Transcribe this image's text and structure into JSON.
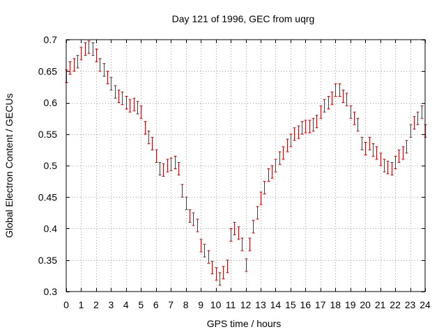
{
  "chart_data": {
    "type": "scatter",
    "title": "Day 121 of 1996, GEC from uqrg",
    "xlabel": "GPS time / hours",
    "ylabel": "Global Electron Content / GECUs",
    "xlim": [
      0,
      24
    ],
    "ylim": [
      0.3,
      0.7
    ],
    "xticks": [
      0,
      1,
      2,
      3,
      4,
      5,
      6,
      7,
      8,
      9,
      10,
      11,
      12,
      13,
      14,
      15,
      16,
      17,
      18,
      19,
      20,
      21,
      22,
      23,
      24
    ],
    "xtick_labels": [
      "0",
      "1",
      "2",
      "3",
      "4",
      "5",
      "6",
      "7",
      "8",
      "9",
      "10",
      "11",
      "12",
      "13",
      "14",
      "15",
      "16",
      "17",
      "18",
      "19",
      "20",
      "21",
      "22",
      "23",
      "24"
    ],
    "yticks": [
      0.3,
      0.35,
      0.4,
      0.45,
      0.5,
      0.55,
      0.6,
      0.65,
      0.7
    ],
    "ytick_labels": [
      "0.3",
      "0.35",
      "0.4",
      "0.45",
      "0.5",
      "0.55",
      "0.6",
      "0.65",
      "0.7"
    ],
    "grid": true,
    "marker": "errorbar",
    "color": "#cc0000",
    "error": 0.01,
    "x": [
      0,
      0.25,
      0.5,
      0.75,
      1,
      1.25,
      1.5,
      1.75,
      2,
      2.25,
      2.5,
      2.75,
      3,
      3.25,
      3.5,
      3.75,
      4,
      4.25,
      4.5,
      4.75,
      5,
      5.25,
      5.5,
      5.75,
      6,
      6.25,
      6.5,
      6.75,
      7,
      7.25,
      7.5,
      7.75,
      8,
      8.25,
      8.5,
      8.75,
      9,
      9.25,
      9.5,
      9.75,
      10,
      10.25,
      10.5,
      10.75,
      11,
      11.25,
      11.5,
      11.75,
      12,
      12.25,
      12.5,
      12.75,
      13,
      13.25,
      13.5,
      13.75,
      14,
      14.25,
      14.5,
      14.75,
      15,
      15.25,
      15.5,
      15.75,
      16,
      16.25,
      16.5,
      16.75,
      17,
      17.25,
      17.5,
      17.75,
      18,
      18.25,
      18.5,
      18.75,
      19,
      19.25,
      19.5,
      19.75,
      20,
      20.25,
      20.5,
      20.75,
      21,
      21.25,
      21.5,
      21.75,
      22,
      22.25,
      22.5,
      22.75,
      23,
      23.25,
      23.5,
      23.75,
      24
    ],
    "y": [
      0.642,
      0.655,
      0.66,
      0.665,
      0.678,
      0.685,
      0.688,
      0.685,
      0.675,
      0.66,
      0.652,
      0.64,
      0.63,
      0.617,
      0.61,
      0.607,
      0.6,
      0.595,
      0.597,
      0.592,
      0.585,
      0.56,
      0.545,
      0.535,
      0.515,
      0.495,
      0.493,
      0.5,
      0.502,
      0.505,
      0.495,
      0.46,
      0.44,
      0.42,
      0.415,
      0.405,
      0.373,
      0.365,
      0.355,
      0.338,
      0.328,
      0.32,
      0.33,
      0.34,
      0.39,
      0.4,
      0.393,
      0.375,
      0.342,
      0.375,
      0.403,
      0.425,
      0.448,
      0.465,
      0.485,
      0.49,
      0.5,
      0.512,
      0.52,
      0.532,
      0.54,
      0.55,
      0.553,
      0.56,
      0.562,
      0.562,
      0.565,
      0.57,
      0.585,
      0.595,
      0.6,
      0.607,
      0.62,
      0.62,
      0.61,
      0.605,
      0.585,
      0.575,
      0.565,
      0.535,
      0.527,
      0.535,
      0.525,
      0.52,
      0.51,
      0.5,
      0.497,
      0.495,
      0.505,
      0.515,
      0.52,
      0.53,
      0.555,
      0.568,
      0.575,
      0.585,
      0.555
    ]
  }
}
